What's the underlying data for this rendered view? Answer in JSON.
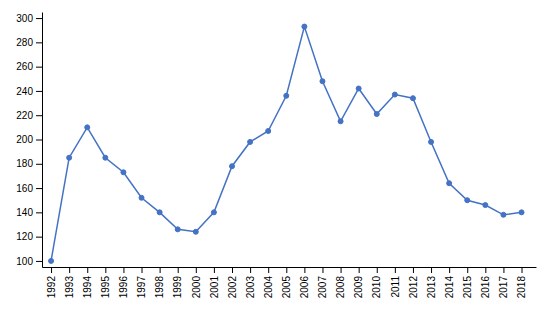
{
  "chart_data": {
    "type": "line",
    "x": [
      1992,
      1993,
      1994,
      1995,
      1996,
      1997,
      1998,
      1999,
      2000,
      2001,
      2002,
      2003,
      2004,
      2005,
      2006,
      2007,
      2008,
      2009,
      2010,
      2011,
      2012,
      2013,
      2014,
      2015,
      2016,
      2017,
      2018
    ],
    "values": [
      100,
      185,
      210,
      185,
      173,
      152,
      140,
      126,
      124,
      140,
      178,
      198,
      207,
      236,
      293,
      248,
      215,
      242,
      221,
      237,
      234,
      198,
      164,
      150,
      146,
      138,
      140
    ],
    "color": "#4472c4",
    "marker": "circle",
    "xlim": [
      1991.5,
      2018.8
    ],
    "xticks": [
      1992,
      1993,
      1994,
      1995,
      1996,
      1997,
      1998,
      1999,
      2000,
      2001,
      2002,
      2003,
      2004,
      2005,
      2006,
      2007,
      2008,
      2009,
      2010,
      2011,
      2012,
      2013,
      2014,
      2015,
      2016,
      2017,
      2018
    ],
    "ylim": [
      95,
      305
    ],
    "yticks": [
      100,
      120,
      140,
      160,
      180,
      200,
      220,
      240,
      260,
      280,
      300
    ],
    "grid": false
  }
}
